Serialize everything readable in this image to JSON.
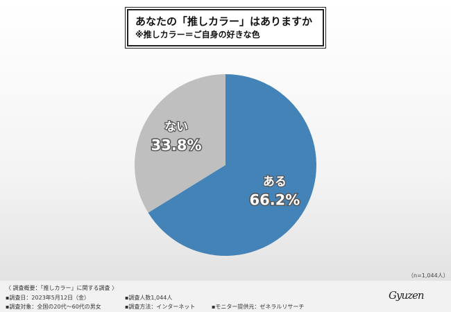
{
  "title": {
    "main": "あなたの「推しカラー」はありますか",
    "sub": "※推しカラー＝ご自身の好きな色"
  },
  "chart_data": {
    "type": "pie",
    "categories": [
      "ある",
      "ない"
    ],
    "values": [
      66.2,
      33.8
    ],
    "value_labels": [
      "66.2%",
      "33.8%"
    ],
    "colors": [
      "#4383b7",
      "#bfbfbf"
    ],
    "start_angle_deg": 0,
    "direction": "clockwise",
    "legend": "none"
  },
  "sample_note": "（n=1,044人）",
  "footer": {
    "heading": "〈 調査概要：「推しカラー」に関する調査 〉",
    "date": "▪調査日：2023年5月12日（金）",
    "respondents": "▪調査人数1,044人",
    "target": "▪調査対象：全国の20代～60代の男女",
    "method": "▪調査方法：インターネット",
    "provider": "▪モニター提供元：ゼネラルリサーチ"
  },
  "brand": "Gyuzen"
}
